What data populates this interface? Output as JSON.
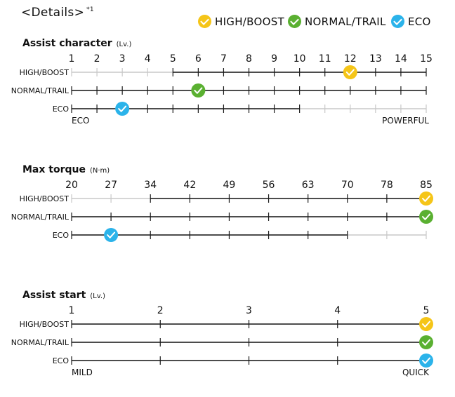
{
  "header": {
    "title": "<Details>",
    "note_mark": "*1"
  },
  "legend": [
    {
      "label": "HIGH/BOOST",
      "color": "#f5c518",
      "icon": "check-icon"
    },
    {
      "label": "NORMAL/TRAIL",
      "color": "#5ab031",
      "icon": "check-icon"
    },
    {
      "label": "ECO",
      "color": "#2bb3ea",
      "icon": "check-icon"
    }
  ],
  "colors": {
    "active_line": "#1a1a1a",
    "inactive_line": "#c8c8c8"
  },
  "chart_data": [
    {
      "type": "scale",
      "title": "Assist character",
      "unit": "(Lv.)",
      "ticks": [
        "1",
        "2",
        "3",
        "4",
        "5",
        "6",
        "7",
        "8",
        "9",
        "10",
        "11",
        "12",
        "13",
        "14",
        "15"
      ],
      "rows": [
        {
          "label": "HIGH/BOOST",
          "range_start_index": 4,
          "range_end_index": 14,
          "marker_index": 11,
          "color": "#f5c518"
        },
        {
          "label": "NORMAL/TRAIL",
          "range_start_index": 0,
          "range_end_index": 14,
          "marker_index": 5,
          "color": "#5ab031"
        },
        {
          "label": "ECO",
          "range_start_index": 0,
          "range_end_index": 9,
          "marker_index": 2,
          "color": "#2bb3ea"
        }
      ],
      "end_left": "ECO",
      "end_right": "POWERFUL"
    },
    {
      "type": "scale",
      "title": "Max torque",
      "unit": "(N·m)",
      "ticks": [
        "20",
        "27",
        "34",
        "42",
        "49",
        "56",
        "63",
        "70",
        "78",
        "85"
      ],
      "rows": [
        {
          "label": "HIGH/BOOST",
          "range_start_index": 2,
          "range_end_index": 9,
          "marker_index": 9,
          "color": "#f5c518"
        },
        {
          "label": "NORMAL/TRAIL",
          "range_start_index": 0,
          "range_end_index": 9,
          "marker_index": 9,
          "color": "#5ab031"
        },
        {
          "label": "ECO",
          "range_start_index": 0,
          "range_end_index": 7,
          "marker_index": 1,
          "color": "#2bb3ea"
        }
      ],
      "end_left": "",
      "end_right": ""
    },
    {
      "type": "scale",
      "title": "Assist start",
      "unit": "(Lv.)",
      "ticks": [
        "1",
        "2",
        "3",
        "4",
        "5"
      ],
      "rows": [
        {
          "label": "HIGH/BOOST",
          "range_start_index": 0,
          "range_end_index": 4,
          "marker_index": 4,
          "color": "#f5c518"
        },
        {
          "label": "NORMAL/TRAIL",
          "range_start_index": 0,
          "range_end_index": 4,
          "marker_index": 4,
          "color": "#5ab031"
        },
        {
          "label": "ECO",
          "range_start_index": 0,
          "range_end_index": 4,
          "marker_index": 4,
          "color": "#2bb3ea"
        }
      ],
      "end_left": "MILD",
      "end_right": "QUICK"
    }
  ]
}
